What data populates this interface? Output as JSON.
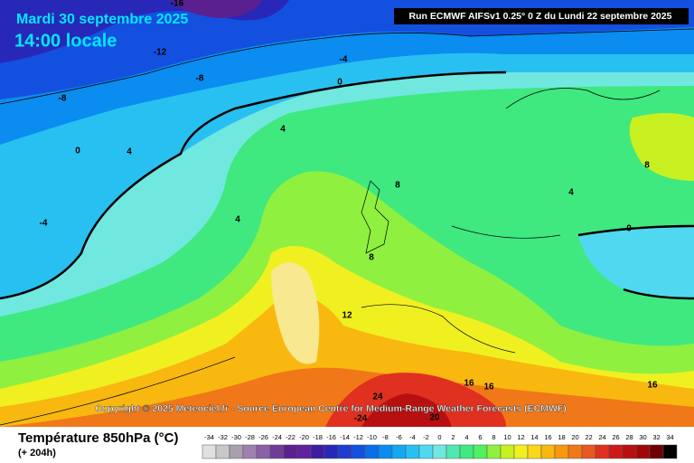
{
  "header": {
    "date": "Mardi 30 septembre 2025",
    "time": "14:00 locale",
    "run": "Run ECMWF AIFSv1 0.25° 0 Z du Lundi 22 septembre 2025"
  },
  "copyright": "Copyright © 2025 Meteociel.fr - Source European Centre for Medium-Range Weather Forecasts (ECMWF)",
  "footer": {
    "title": "Température 850hPa (°C)",
    "subtitle": "(+ 204h)"
  },
  "map": {
    "contour_labels": [
      -16,
      -12,
      -8,
      -8,
      -4,
      0,
      -4,
      0,
      4,
      4,
      4,
      8,
      8,
      12,
      4,
      8,
      0,
      16,
      16,
      16,
      24,
      -24,
      20
    ]
  },
  "legend": {
    "values": [
      -34,
      -32,
      -30,
      -28,
      -26,
      -24,
      -22,
      -20,
      -18,
      -16,
      -14,
      -12,
      -10,
      -8,
      -6,
      -4,
      -2,
      0,
      2,
      4,
      6,
      8,
      10,
      12,
      14,
      16,
      18,
      20,
      22,
      24,
      26,
      28,
      30,
      32,
      34
    ],
    "colors": [
      "#e0e0e0",
      "#c8c8c8",
      "#a8a0b0",
      "#a080b0",
      "#8a60a8",
      "#703c98",
      "#5a2090",
      "#6020a0",
      "#3c1ea0",
      "#2828b8",
      "#1e3cd0",
      "#1450e0",
      "#0a6ee8",
      "#0a8cf0",
      "#14a8f0",
      "#28c0f0",
      "#50d8f0",
      "#70e8e0",
      "#50e8b0",
      "#40e880",
      "#50f060",
      "#90f040",
      "#c8f020",
      "#f0f020",
      "#f8d818",
      "#f8b810",
      "#f89810",
      "#f07818",
      "#e85820",
      "#e03020",
      "#d01818",
      "#b81010",
      "#a00808",
      "#700000",
      "#000000"
    ]
  }
}
